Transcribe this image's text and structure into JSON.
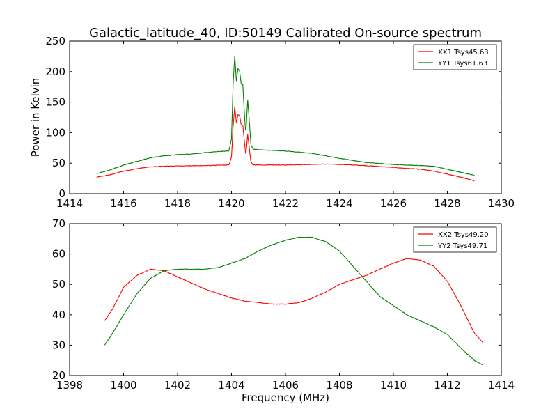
{
  "title": "Galactic_latitude_40, ID:50149 Calibrated On-source spectrum",
  "chart_data": [
    {
      "type": "line",
      "xlabel": "",
      "ylabel": "Power in Kelvin",
      "xlim": [
        1414,
        1430
      ],
      "ylim": [
        0,
        250
      ],
      "xticks": [
        1414,
        1416,
        1418,
        1420,
        1422,
        1424,
        1426,
        1428,
        1430
      ],
      "yticks": [
        0,
        50,
        100,
        150,
        200,
        250
      ],
      "grid": false,
      "legend_position": "top-right",
      "series": [
        {
          "name": "XX1 Tsys45.63",
          "color": "#ff0000",
          "points": [
            [
              1415.0,
              27
            ],
            [
              1415.5,
              31
            ],
            [
              1416.0,
              37
            ],
            [
              1416.5,
              41
            ],
            [
              1417.0,
              44
            ],
            [
              1417.5,
              45
            ],
            [
              1418.0,
              45.5
            ],
            [
              1419.0,
              46
            ],
            [
              1419.9,
              47
            ],
            [
              1420.0,
              60
            ],
            [
              1420.06,
              110
            ],
            [
              1420.12,
              143
            ],
            [
              1420.18,
              116
            ],
            [
              1420.24,
              130
            ],
            [
              1420.3,
              128
            ],
            [
              1420.36,
              113
            ],
            [
              1420.42,
              112
            ],
            [
              1420.48,
              85
            ],
            [
              1420.53,
              62
            ],
            [
              1420.6,
              97
            ],
            [
              1420.65,
              78
            ],
            [
              1420.72,
              52
            ],
            [
              1420.8,
              47
            ],
            [
              1421.0,
              47
            ],
            [
              1422.0,
              47
            ],
            [
              1423.0,
              48
            ],
            [
              1423.5,
              48.5
            ],
            [
              1424.0,
              48
            ],
            [
              1425.0,
              46
            ],
            [
              1426.0,
              43
            ],
            [
              1427.0,
              40
            ],
            [
              1427.5,
              37
            ],
            [
              1428.0,
              32
            ],
            [
              1428.5,
              27
            ],
            [
              1429.0,
              21
            ]
          ]
        },
        {
          "name": "YY1 Tsys61.63",
          "color": "#008000",
          "points": [
            [
              1415.0,
              33
            ],
            [
              1415.5,
              39
            ],
            [
              1416.0,
              47
            ],
            [
              1416.5,
              53
            ],
            [
              1417.0,
              59
            ],
            [
              1417.5,
              62
            ],
            [
              1418.0,
              64
            ],
            [
              1418.5,
              65
            ],
            [
              1419.0,
              67
            ],
            [
              1419.5,
              69
            ],
            [
              1419.9,
              70
            ],
            [
              1420.0,
              90
            ],
            [
              1420.06,
              180
            ],
            [
              1420.12,
              226
            ],
            [
              1420.18,
              185
            ],
            [
              1420.24,
              205
            ],
            [
              1420.3,
              201
            ],
            [
              1420.36,
              180
            ],
            [
              1420.42,
              178
            ],
            [
              1420.48,
              130
            ],
            [
              1420.53,
              98
            ],
            [
              1420.6,
              154
            ],
            [
              1420.65,
              125
            ],
            [
              1420.72,
              80
            ],
            [
              1420.8,
              73
            ],
            [
              1421.0,
              72
            ],
            [
              1422.0,
              70
            ],
            [
              1423.0,
              66
            ],
            [
              1424.0,
              58
            ],
            [
              1425.0,
              51
            ],
            [
              1426.0,
              48
            ],
            [
              1427.0,
              46
            ],
            [
              1427.5,
              45
            ],
            [
              1428.0,
              40
            ],
            [
              1428.5,
              35
            ],
            [
              1429.0,
              30
            ]
          ]
        }
      ]
    },
    {
      "type": "line",
      "xlabel": "Frequency (MHz)",
      "ylabel": "",
      "xlim": [
        1398,
        1414
      ],
      "ylim": [
        20,
        70
      ],
      "xticks": [
        1398,
        1400,
        1402,
        1404,
        1406,
        1408,
        1410,
        1412,
        1414
      ],
      "yticks": [
        20,
        30,
        40,
        50,
        60,
        70
      ],
      "grid": false,
      "legend_position": "top-right",
      "series": [
        {
          "name": "XX2 Tsys49.20",
          "color": "#ff0000",
          "points": [
            [
              1399.3,
              38
            ],
            [
              1399.6,
              42
            ],
            [
              1400.0,
              49
            ],
            [
              1400.5,
              53
            ],
            [
              1401.0,
              55
            ],
            [
              1401.5,
              54.5
            ],
            [
              1402.0,
              52.5
            ],
            [
              1402.5,
              50.5
            ],
            [
              1403.0,
              48.5
            ],
            [
              1403.5,
              47
            ],
            [
              1404.0,
              45.5
            ],
            [
              1404.5,
              44.5
            ],
            [
              1405.0,
              44
            ],
            [
              1405.5,
              43.5
            ],
            [
              1406.0,
              43.5
            ],
            [
              1406.5,
              44
            ],
            [
              1407.0,
              45.5
            ],
            [
              1407.5,
              47.5
            ],
            [
              1408.0,
              50
            ],
            [
              1408.5,
              51.5
            ],
            [
              1409.0,
              53
            ],
            [
              1409.5,
              55
            ],
            [
              1410.0,
              57
            ],
            [
              1410.5,
              58.5
            ],
            [
              1411.0,
              58
            ],
            [
              1411.5,
              56
            ],
            [
              1412.0,
              51
            ],
            [
              1412.5,
              43
            ],
            [
              1413.0,
              34
            ],
            [
              1413.3,
              31
            ]
          ]
        },
        {
          "name": "YY2 Tsys49.71",
          "color": "#008000",
          "points": [
            [
              1399.3,
              30
            ],
            [
              1399.6,
              34
            ],
            [
              1400.0,
              40
            ],
            [
              1400.5,
              47
            ],
            [
              1401.0,
              52
            ],
            [
              1401.5,
              54.5
            ],
            [
              1402.0,
              55
            ],
            [
              1402.5,
              55
            ],
            [
              1403.0,
              55
            ],
            [
              1403.5,
              55.5
            ],
            [
              1404.0,
              57
            ],
            [
              1404.5,
              58.5
            ],
            [
              1405.0,
              61
            ],
            [
              1405.5,
              63
            ],
            [
              1406.0,
              64.5
            ],
            [
              1406.5,
              65.5
            ],
            [
              1407.0,
              65.5
            ],
            [
              1407.5,
              64
            ],
            [
              1408.0,
              61
            ],
            [
              1408.5,
              56
            ],
            [
              1409.0,
              51
            ],
            [
              1409.5,
              46
            ],
            [
              1410.0,
              43
            ],
            [
              1410.5,
              40
            ],
            [
              1411.0,
              38
            ],
            [
              1411.5,
              36
            ],
            [
              1412.0,
              33.5
            ],
            [
              1412.5,
              29
            ],
            [
              1413.0,
              25
            ],
            [
              1413.3,
              23.5
            ]
          ]
        }
      ]
    }
  ]
}
